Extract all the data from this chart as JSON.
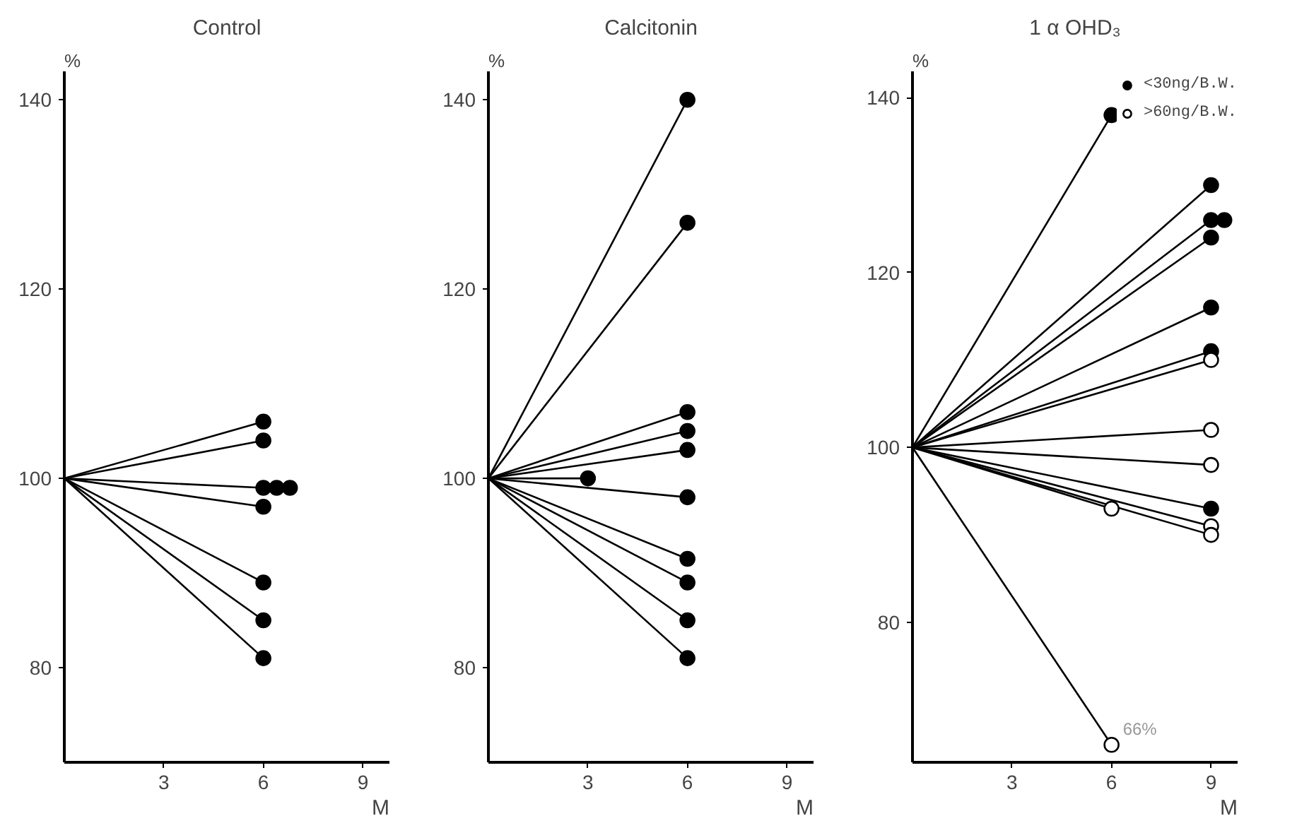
{
  "chart_data": [
    {
      "type": "line",
      "title": "Control",
      "xlabel": "M",
      "ylabel": "%",
      "xlim": [
        0,
        9.8
      ],
      "ylim": [
        70,
        143
      ],
      "xticks": [
        3,
        6,
        9
      ],
      "yticks": [
        80,
        100,
        120,
        140
      ],
      "grid": false,
      "legend": false,
      "line_style": "solid",
      "series": [
        {
          "marker": "none",
          "color": "#000000",
          "x": [
            0,
            6
          ],
          "values": [
            100,
            106
          ]
        },
        {
          "marker": "none",
          "color": "#000000",
          "x": [
            0,
            6
          ],
          "values": [
            100,
            104
          ]
        },
        {
          "marker": "none",
          "color": "#000000",
          "x": [
            0,
            6
          ],
          "values": [
            100,
            99
          ]
        },
        {
          "marker": "none",
          "color": "#000000",
          "x": [
            0,
            6
          ],
          "values": [
            100,
            97
          ]
        },
        {
          "marker": "none",
          "color": "#000000",
          "x": [
            0,
            6
          ],
          "values": [
            100,
            89
          ]
        },
        {
          "marker": "none",
          "color": "#000000",
          "x": [
            0,
            6
          ],
          "values": [
            100,
            85
          ]
        },
        {
          "marker": "none",
          "color": "#000000",
          "x": [
            0,
            6
          ],
          "values": [
            100,
            81
          ]
        },
        {
          "type": "scatter",
          "marker": "circle",
          "color": "#000000",
          "x": [
            6,
            6,
            6,
            6.4,
            6.8,
            6,
            6,
            6,
            6
          ],
          "values": [
            106,
            104,
            99,
            99,
            99,
            97,
            89,
            85,
            81
          ]
        }
      ]
    },
    {
      "type": "line",
      "title": "Calcitonin",
      "xlabel": "M",
      "ylabel": "%",
      "xlim": [
        0,
        9.8
      ],
      "ylim": [
        70,
        143
      ],
      "xticks": [
        3,
        6,
        9
      ],
      "yticks": [
        80,
        100,
        120,
        140
      ],
      "grid": false,
      "legend": false,
      "line_style": "solid",
      "series": [
        {
          "marker": "none",
          "color": "#000000",
          "x": [
            0,
            6
          ],
          "values": [
            100,
            140
          ]
        },
        {
          "marker": "none",
          "color": "#000000",
          "x": [
            0,
            6
          ],
          "values": [
            100,
            127
          ]
        },
        {
          "marker": "none",
          "color": "#000000",
          "x": [
            0,
            6
          ],
          "values": [
            100,
            107
          ]
        },
        {
          "marker": "none",
          "color": "#000000",
          "x": [
            0,
            6
          ],
          "values": [
            100,
            105
          ]
        },
        {
          "marker": "none",
          "color": "#000000",
          "x": [
            0,
            6
          ],
          "values": [
            100,
            103
          ]
        },
        {
          "marker": "none",
          "color": "#000000",
          "x": [
            0,
            3
          ],
          "values": [
            100,
            100
          ]
        },
        {
          "marker": "none",
          "color": "#000000",
          "x": [
            0,
            6
          ],
          "values": [
            100,
            98
          ]
        },
        {
          "marker": "none",
          "color": "#000000",
          "x": [
            0,
            6
          ],
          "values": [
            100,
            91.5
          ]
        },
        {
          "marker": "none",
          "color": "#000000",
          "x": [
            0,
            6
          ],
          "values": [
            100,
            89
          ]
        },
        {
          "marker": "none",
          "color": "#000000",
          "x": [
            0,
            6
          ],
          "values": [
            100,
            85
          ]
        },
        {
          "marker": "none",
          "color": "#000000",
          "x": [
            0,
            6
          ],
          "values": [
            100,
            81
          ]
        },
        {
          "type": "scatter",
          "marker": "circle",
          "color": "#000000",
          "x": [
            6,
            6,
            6,
            6,
            6,
            3,
            6,
            6,
            6,
            6,
            6
          ],
          "values": [
            140,
            127,
            107,
            105,
            103,
            100,
            98,
            91.5,
            89,
            85,
            81
          ]
        }
      ]
    },
    {
      "type": "line",
      "title": "1 α OHD₃",
      "xlabel": "M",
      "ylabel": "%",
      "xlim": [
        0,
        9.8
      ],
      "ylim": [
        64,
        143
      ],
      "xticks": [
        3,
        6,
        9
      ],
      "yticks": [
        80,
        100,
        120,
        140
      ],
      "grid": false,
      "legend": "top right",
      "line_style": "solid",
      "annotations": [
        {
          "text": "66%",
          "x": 6,
          "y": 66
        }
      ],
      "series": [
        {
          "marker": "none",
          "color": "#000000",
          "x": [
            0,
            6
          ],
          "values": [
            100,
            138
          ]
        },
        {
          "marker": "none",
          "color": "#000000",
          "x": [
            0,
            9
          ],
          "values": [
            100,
            130
          ]
        },
        {
          "marker": "none",
          "color": "#000000",
          "x": [
            0,
            9
          ],
          "values": [
            100,
            126
          ]
        },
        {
          "marker": "none",
          "color": "#000000",
          "x": [
            0,
            9
          ],
          "values": [
            100,
            124
          ]
        },
        {
          "marker": "none",
          "color": "#000000",
          "x": [
            0,
            9
          ],
          "values": [
            100,
            116
          ]
        },
        {
          "marker": "none",
          "color": "#000000",
          "x": [
            0,
            9
          ],
          "values": [
            100,
            111
          ]
        },
        {
          "marker": "none",
          "color": "#000000",
          "x": [
            0,
            9
          ],
          "values": [
            100,
            93
          ]
        },
        {
          "marker": "none",
          "color": "#000000",
          "x": [
            0,
            9
          ],
          "values": [
            100,
            110
          ]
        },
        {
          "marker": "none",
          "color": "#000000",
          "x": [
            0,
            9
          ],
          "values": [
            100,
            102
          ]
        },
        {
          "marker": "none",
          "color": "#000000",
          "x": [
            0,
            9
          ],
          "values": [
            100,
            98
          ]
        },
        {
          "marker": "none",
          "color": "#000000",
          "x": [
            0,
            9
          ],
          "values": [
            100,
            91
          ]
        },
        {
          "marker": "none",
          "color": "#000000",
          "x": [
            0,
            9
          ],
          "values": [
            100,
            90
          ]
        },
        {
          "marker": "none",
          "color": "#000000",
          "x": [
            0,
            6
          ],
          "values": [
            100,
            93
          ]
        },
        {
          "marker": "none",
          "color": "#000000",
          "x": [
            0,
            6
          ],
          "values": [
            100,
            66
          ]
        },
        {
          "type": "scatter",
          "marker": "circle",
          "name": "<30ng/B.W.",
          "color": "#000000",
          "x": [
            6,
            9,
            9,
            9.4,
            9,
            9,
            9,
            9
          ],
          "values": [
            138,
            130,
            126,
            126,
            124,
            116,
            111,
            93
          ]
        },
        {
          "type": "scatter",
          "marker": "circle",
          "name": ">60ng/B.W.",
          "color": "#ffffff",
          "x": [
            9,
            9,
            9,
            9,
            9,
            6,
            6
          ],
          "values": [
            110,
            102,
            98,
            91,
            90,
            93,
            66
          ]
        }
      ]
    }
  ]
}
